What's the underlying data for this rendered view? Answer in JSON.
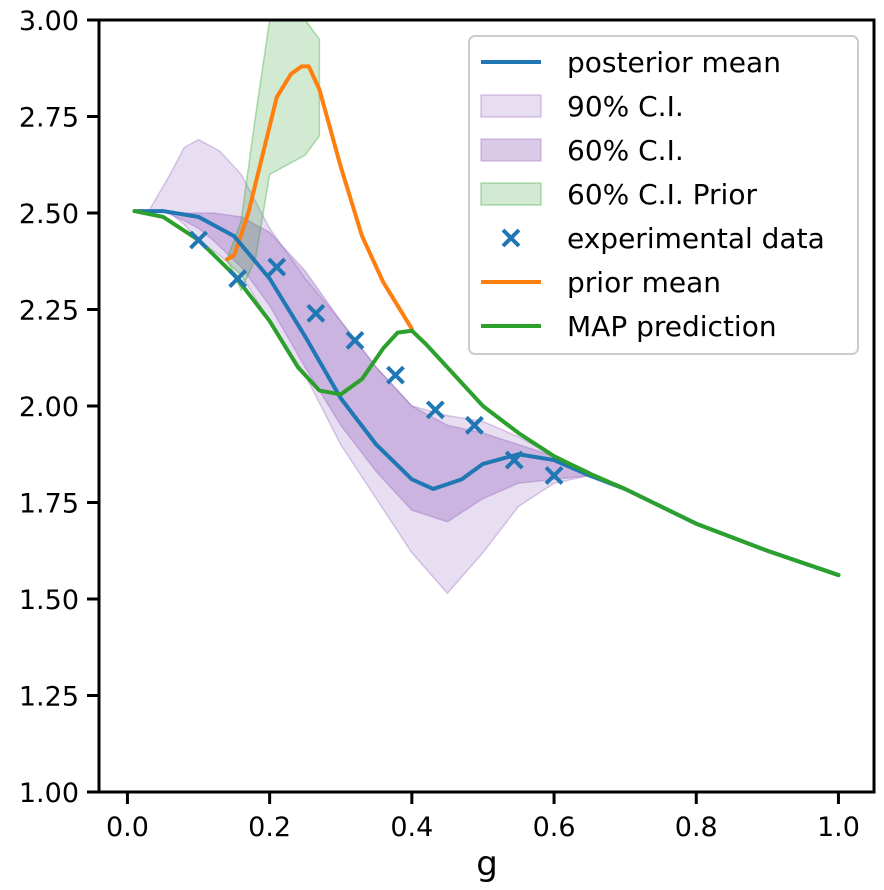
{
  "chart_data": {
    "type": "line",
    "title": "",
    "xlabel": "g",
    "ylabel": "",
    "xlim": [
      -0.04,
      1.05
    ],
    "ylim": [
      1.0,
      3.0
    ],
    "xticks": [
      "0.0",
      "0.2",
      "0.4",
      "0.6",
      "0.8",
      "1.0"
    ],
    "yticks": [
      "1.00",
      "1.25",
      "1.50",
      "1.75",
      "2.00",
      "2.25",
      "2.50",
      "2.75",
      "3.00"
    ],
    "legend_position": "top-right",
    "grid": false,
    "series": [
      {
        "name": "posterior mean",
        "kind": "line",
        "color": "#1f77b4",
        "x": [
          0.01,
          0.05,
          0.1,
          0.15,
          0.2,
          0.25,
          0.3,
          0.35,
          0.4,
          0.43,
          0.47,
          0.5,
          0.55,
          0.6,
          0.65,
          0.7,
          0.8,
          0.9,
          1.0
        ],
        "y": [
          2.505,
          2.505,
          2.49,
          2.44,
          2.33,
          2.18,
          2.02,
          1.9,
          1.81,
          1.785,
          1.81,
          1.85,
          1.875,
          1.86,
          1.82,
          1.785,
          1.695,
          1.625,
          1.562
        ]
      },
      {
        "name": "90% C.I.",
        "kind": "band",
        "color": "#9467bd",
        "opacity": 0.22,
        "x": [
          0.03,
          0.06,
          0.08,
          0.1,
          0.13,
          0.16,
          0.2,
          0.25,
          0.3,
          0.35,
          0.4,
          0.45,
          0.5,
          0.55,
          0.6,
          0.65
        ],
        "upper": [
          2.505,
          2.6,
          2.67,
          2.69,
          2.66,
          2.6,
          2.46,
          2.33,
          2.22,
          2.1,
          2.0,
          1.975,
          1.96,
          1.92,
          1.87,
          1.83
        ],
        "lower": [
          2.505,
          2.5,
          2.47,
          2.43,
          2.39,
          2.34,
          2.22,
          2.08,
          1.9,
          1.76,
          1.62,
          1.515,
          1.62,
          1.74,
          1.8,
          1.82
        ]
      },
      {
        "name": "60% C.I.",
        "kind": "band",
        "color": "#9467bd",
        "opacity": 0.35,
        "x": [
          0.05,
          0.08,
          0.1,
          0.12,
          0.16,
          0.2,
          0.25,
          0.3,
          0.35,
          0.4,
          0.45,
          0.5,
          0.55,
          0.6,
          0.65
        ],
        "upper": [
          2.505,
          2.5,
          2.5,
          2.5,
          2.49,
          2.45,
          2.35,
          2.22,
          2.1,
          2.0,
          1.95,
          1.93,
          1.9,
          1.87,
          1.83
        ],
        "lower": [
          2.505,
          2.48,
          2.46,
          2.43,
          2.36,
          2.26,
          2.1,
          1.95,
          1.83,
          1.73,
          1.7,
          1.76,
          1.8,
          1.81,
          1.82
        ]
      },
      {
        "name": "60% C.I. Prior",
        "kind": "band",
        "color": "#2ca02c",
        "opacity": 0.22,
        "x": [
          0.14,
          0.16,
          0.18,
          0.2,
          0.22,
          0.25,
          0.27
        ],
        "upper": [
          2.38,
          2.48,
          2.75,
          3.0,
          3.05,
          3.0,
          2.95
        ],
        "lower": [
          2.38,
          2.3,
          2.38,
          2.6,
          2.62,
          2.65,
          2.7
        ]
      },
      {
        "name": "experimental data",
        "kind": "scatter",
        "marker": "x",
        "color": "#1f77b4",
        "x": [
          0.1,
          0.155,
          0.21,
          0.265,
          0.32,
          0.377,
          0.433,
          0.488,
          0.544,
          0.6
        ],
        "y": [
          2.43,
          2.33,
          2.36,
          2.24,
          2.17,
          2.08,
          1.99,
          1.95,
          1.86,
          1.82
        ]
      },
      {
        "name": "prior mean",
        "kind": "line",
        "color": "#ff7f0e",
        "x": [
          0.14,
          0.15,
          0.17,
          0.19,
          0.21,
          0.23,
          0.245,
          0.255,
          0.27,
          0.3,
          0.33,
          0.36,
          0.4
        ],
        "y": [
          2.38,
          2.39,
          2.5,
          2.65,
          2.8,
          2.86,
          2.88,
          2.88,
          2.82,
          2.62,
          2.44,
          2.32,
          2.2
        ]
      },
      {
        "name": "MAP prediction",
        "kind": "line",
        "color": "#2ca02c",
        "x": [
          0.01,
          0.05,
          0.1,
          0.15,
          0.2,
          0.24,
          0.27,
          0.3,
          0.33,
          0.36,
          0.38,
          0.4,
          0.42,
          0.45,
          0.5,
          0.55,
          0.6,
          0.65,
          0.7,
          0.8,
          0.9,
          1.0
        ],
        "y": [
          2.505,
          2.49,
          2.43,
          2.34,
          2.22,
          2.1,
          2.04,
          2.03,
          2.07,
          2.15,
          2.19,
          2.195,
          2.16,
          2.1,
          2.0,
          1.93,
          1.87,
          1.825,
          1.785,
          1.695,
          1.625,
          1.562
        ]
      }
    ]
  }
}
